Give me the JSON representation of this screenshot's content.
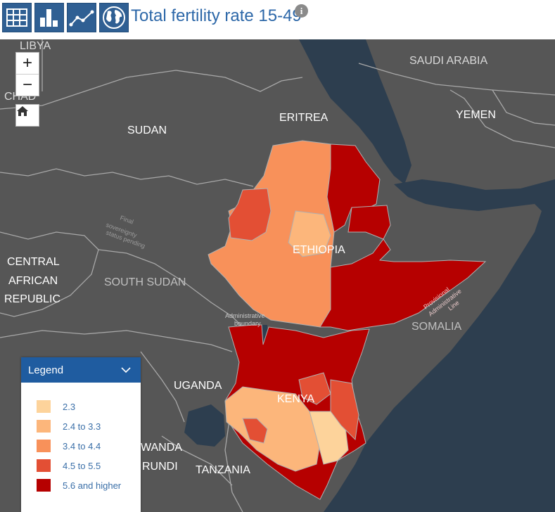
{
  "toolbar": {
    "title": "Total fertility rate 15-49",
    "buttons": [
      "table-view",
      "bar-chart-view",
      "line-chart-view",
      "map-view"
    ],
    "info_icon": "i"
  },
  "map": {
    "zoom_in": "+",
    "zoom_out": "−",
    "home": "home-icon",
    "country_labels": {
      "libya": "LIBYA",
      "chad": "CHAD",
      "saudi_arabia": "SAUDI ARABIA",
      "yemen": "YEMEN",
      "sudan": "SUDAN",
      "eritrea": "ERITREA",
      "ethiopia": "ETHIOPIA",
      "central_african_republic_1": "CENTRAL",
      "central_african_republic_2": "AFRICAN",
      "central_african_republic_3": "REPUBLIC",
      "south_sudan": "SOUTH SUDAN",
      "somalia": "SOMALIA",
      "uganda": "UGANDA",
      "kenya": "KENYA",
      "rwanda": "WANDA",
      "burundi": "RUNDI",
      "tanzania": "TANZANIA"
    },
    "boundary_notes": {
      "final_1": "Final",
      "final_2": "sovereignty",
      "final_3": "status pending",
      "admin_1": "Administrative",
      "admin_2": "boundary",
      "prov_1": "Provisional",
      "prov_2": "Administrative",
      "prov_3": "Line"
    }
  },
  "legend": {
    "title": "Legend",
    "items": [
      {
        "label": "2.3",
        "color": "#fdd39b"
      },
      {
        "label": "2.4 to 3.3",
        "color": "#fcb67b"
      },
      {
        "label": "3.4 to 4.4",
        "color": "#f8915a"
      },
      {
        "label": "4.5 to 5.5",
        "color": "#e34f34"
      },
      {
        "label": "5.6 and higher",
        "color": "#b60000"
      }
    ]
  },
  "colors": {
    "land": "#565656",
    "water": "#2d3e4f",
    "border": "#a8a8a8",
    "accent": "#1f5ca0"
  }
}
